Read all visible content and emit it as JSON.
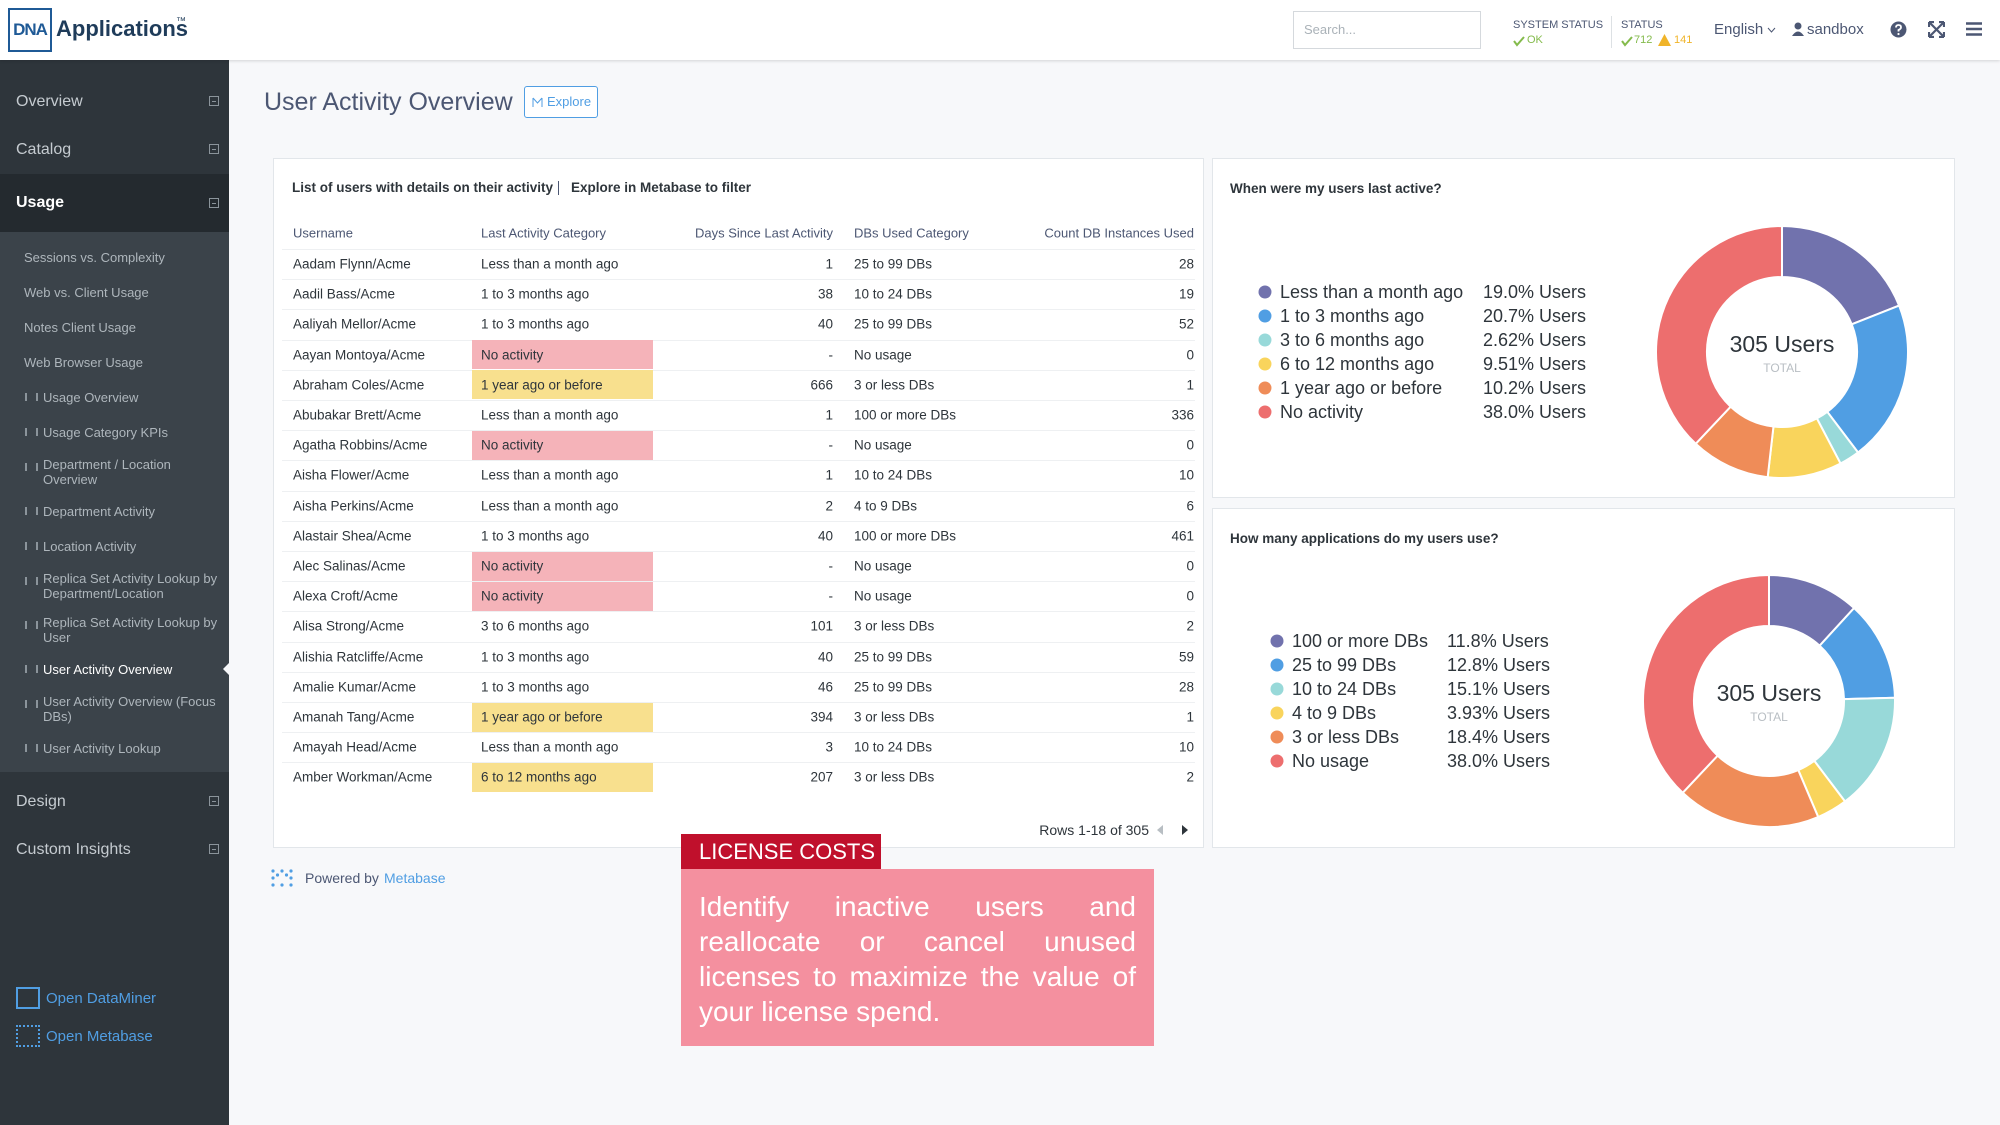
{
  "header": {
    "brand_mark": "DNA",
    "brand": "Applications",
    "trademark": "™",
    "search_placeholder": "Search...",
    "system_status_label": "SYSTEM STATUS",
    "system_status_value": "OK",
    "status_label": "STATUS",
    "status_ok": "712",
    "status_warn": "141",
    "language": "English",
    "user": "sandbox"
  },
  "sidebar": {
    "top_sections": [
      "Overview",
      "Catalog"
    ],
    "active_section": "Usage",
    "items": [
      "Sessions vs. Complexity",
      "Web vs. Client Usage",
      "Notes Client Usage",
      "Web Browser Usage",
      "Usage Overview",
      "Usage Category KPIs",
      "Department / Location Overview",
      "Department Activity",
      "Location Activity",
      "Replica Set Activity Lookup by Department/Location",
      "Replica Set Activity Lookup by User",
      "User Activity Overview",
      "User Activity Overview (Focus DBs)",
      "User Activity Lookup"
    ],
    "active_item": 11,
    "bottom_sections": [
      "Design",
      "Custom Insights"
    ],
    "links": [
      "Open DataMiner",
      "Open Metabase"
    ]
  },
  "page": {
    "title": "User Activity Overview",
    "explore": "Explore"
  },
  "table_card": {
    "heading": "List of users with details on their activity",
    "link": "Explore in Metabase to filter",
    "columns": [
      "Username",
      "Last Activity Category",
      "Days Since Last Activity",
      "DBs Used Category",
      "Count DB Instances Used"
    ],
    "highlight_colors": {
      "No activity": "#f5b3b9",
      "1 year ago or before": "#f8e08e",
      "6 to 12 months ago": "#f8e08e"
    },
    "rows": [
      [
        "Aadam Flynn/Acme",
        "Less than a month ago",
        1,
        "25 to 99 DBs",
        28
      ],
      [
        "Aadil Bass/Acme",
        "1 to 3 months ago",
        38,
        "10 to 24 DBs",
        19
      ],
      [
        "Aaliyah Mellor/Acme",
        "1 to 3 months ago",
        40,
        "25 to 99 DBs",
        52
      ],
      [
        "Aayan Montoya/Acme",
        "No activity",
        "-",
        "No usage",
        0
      ],
      [
        "Abraham Coles/Acme",
        "1 year ago or before",
        666,
        "3 or less DBs",
        1
      ],
      [
        "Abubakar Brett/Acme",
        "Less than a month ago",
        1,
        "100 or more DBs",
        336
      ],
      [
        "Agatha Robbins/Acme",
        "No activity",
        "-",
        "No usage",
        0
      ],
      [
        "Aisha Flower/Acme",
        "Less than a month ago",
        1,
        "10 to 24 DBs",
        10
      ],
      [
        "Aisha Perkins/Acme",
        "Less than a month ago",
        2,
        "4 to 9 DBs",
        6
      ],
      [
        "Alastair Shea/Acme",
        "1 to 3 months ago",
        40,
        "100 or more DBs",
        461
      ],
      [
        "Alec Salinas/Acme",
        "No activity",
        "-",
        "No usage",
        0
      ],
      [
        "Alexa Croft/Acme",
        "No activity",
        "-",
        "No usage",
        0
      ],
      [
        "Alisa Strong/Acme",
        "3 to 6 months ago",
        101,
        "3 or less DBs",
        2
      ],
      [
        "Alishia Ratcliffe/Acme",
        "1 to 3 months ago",
        40,
        "25 to 99 DBs",
        59
      ],
      [
        "Amalie Kumar/Acme",
        "1 to 3 months ago",
        46,
        "25 to 99 DBs",
        28
      ],
      [
        "Amanah Tang/Acme",
        "1 year ago or before",
        394,
        "3 or less DBs",
        1
      ],
      [
        "Amayah Head/Acme",
        "Less than a month ago",
        3,
        "10 to 24 DBs",
        10
      ],
      [
        "Amber Workman/Acme",
        "6 to 12 months ago",
        207,
        "3 or less DBs",
        2
      ]
    ],
    "pagination": "Rows 1-18 of 305"
  },
  "charts": [
    {
      "type": "donut",
      "question": "When were my users last active?",
      "center_value": "305 Users",
      "center_label": "TOTAL",
      "segments": [
        {
          "name": "Less than a month ago",
          "color": "#7172ad",
          "value": 19.0,
          "value_label": "19.0% Users"
        },
        {
          "name": "1 to 3 months ago",
          "color": "#509ee3",
          "value": 20.7,
          "value_label": "20.7% Users"
        },
        {
          "name": "3 to 6 months ago",
          "color": "#98d9d9",
          "value": 2.62,
          "value_label": "2.62% Users"
        },
        {
          "name": "6 to 12 months ago",
          "color": "#f9d45c",
          "value": 9.51,
          "value_label": "9.51% Users"
        },
        {
          "name": "1 year ago or before",
          "color": "#ef8c58",
          "value": 10.2,
          "value_label": "10.2% Users"
        },
        {
          "name": "No activity",
          "color": "#ed6e6e",
          "value": 38.0,
          "value_label": "38.0% Users"
        }
      ]
    },
    {
      "type": "donut",
      "question": "How many applications do my users use?",
      "center_value": "305 Users",
      "center_label": "TOTAL",
      "segments": [
        {
          "name": "100 or more DBs",
          "color": "#7172ad",
          "value": 11.8,
          "value_label": "11.8% Users"
        },
        {
          "name": "25 to 99 DBs",
          "color": "#509ee3",
          "value": 12.8,
          "value_label": "12.8% Users"
        },
        {
          "name": "10 to 24 DBs",
          "color": "#98d9d9",
          "value": 15.1,
          "value_label": "15.1% Users"
        },
        {
          "name": "4 to 9 DBs",
          "color": "#f9d45c",
          "value": 3.93,
          "value_label": "3.93% Users"
        },
        {
          "name": "3 or less DBs",
          "color": "#ef8c58",
          "value": 18.4,
          "value_label": "18.4% Users"
        },
        {
          "name": "No usage",
          "color": "#ed6e6e",
          "value": 38.0,
          "value_label": "38.0% Users"
        }
      ]
    }
  ],
  "footer": {
    "powered_by": "Powered by",
    "metabase": "Metabase"
  },
  "callout": {
    "tag": "LICENSE COSTS",
    "text": "Identify inactive users and reallocate or cancel unused licenses to maximize the value of your license spend."
  }
}
